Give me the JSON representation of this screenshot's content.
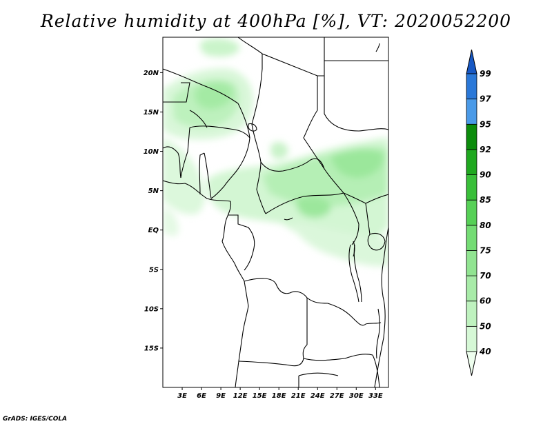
{
  "title": "Relative humidity at 400hPa [%], VT: 2020052200",
  "credit": "GrADS: IGES/COLA",
  "map": {
    "lat_labels": [
      "20N",
      "15N",
      "10N",
      "5N",
      "EQ",
      "5S",
      "10S",
      "15S"
    ],
    "lon_labels": [
      "3E",
      "6E",
      "9E",
      "12E",
      "15E",
      "18E",
      "21E",
      "24E",
      "27E",
      "30E",
      "33E"
    ],
    "lat_range": [
      -20,
      24.5
    ],
    "lon_range": [
      0,
      35
    ]
  },
  "colorbar": {
    "levels": [
      "40",
      "50",
      "60",
      "70",
      "75",
      "80",
      "85",
      "90",
      "92",
      "95",
      "97",
      "99"
    ],
    "colors": [
      "#eefeee",
      "#d6f8d6",
      "#bff2bf",
      "#a8eba8",
      "#91e491",
      "#74dc74",
      "#56d056",
      "#39bf39",
      "#1fa81f",
      "#0c8c0c",
      "#4a9ae8",
      "#2a78d8",
      "#1758c4"
    ]
  }
}
